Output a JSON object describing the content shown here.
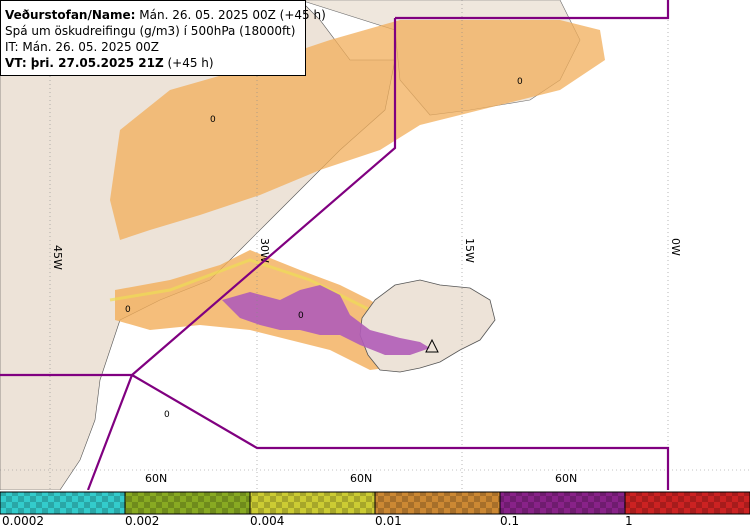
{
  "info": {
    "line1_bold": "Veðurstofan/Name:",
    "line1_rest": " Mán. 26. 05. 2025 00Z (+45 h)",
    "line2": "Spá um öskudreifingu (g/m3) í 500hPa (18000ft)",
    "line3": "IT: Mán. 26. 05. 2025 00Z",
    "line4_bold": "VT: þri. 27.05.2025 21Z",
    "line4_rest": " (+45 h)"
  },
  "grid": {
    "lon_labels": [
      "45W",
      "30W",
      "15W",
      "0W"
    ],
    "lat_labels": [
      "60N",
      "60N",
      "60N"
    ]
  },
  "contour_values": [
    "0",
    "0",
    "0",
    "0",
    "0"
  ],
  "legend": {
    "colors": [
      "#33cccc",
      "#88aa22",
      "#cccc33",
      "#cc8833",
      "#882288",
      "#cc2222"
    ],
    "labels": [
      "0.0002",
      "0.002",
      "0.004",
      "0.01",
      "0.1",
      "1"
    ]
  },
  "colors": {
    "land": "#ede3d8",
    "boundary": "#800080",
    "ash_orange": "#f2ae5a",
    "ash_purple": "#b05cb8"
  }
}
